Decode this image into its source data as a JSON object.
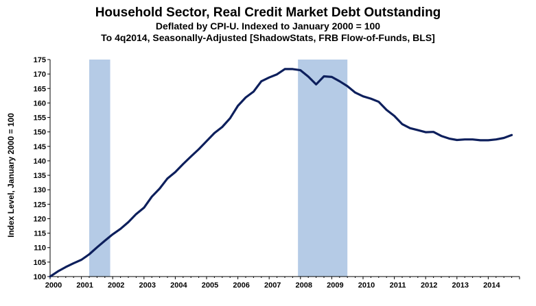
{
  "chart_data": {
    "type": "line",
    "title": "Household Sector, Real Credit Market Debt Outstanding",
    "subtitle_1": "Deflated by CPI-U. Indexed to January 2000 = 100",
    "subtitle_2": "To 4q2014, Seasonally-Adjusted [ShadowStats, FRB Flow-of-Funds, BLS]",
    "ylabel": "Index Level, January 2000 = 100",
    "xlabel": "",
    "ylim": [
      100,
      175
    ],
    "yticks": [
      100,
      105,
      110,
      115,
      120,
      125,
      130,
      135,
      140,
      145,
      150,
      155,
      160,
      165,
      170,
      175
    ],
    "xlim": [
      2000.0,
      2015.0
    ],
    "xticks": [
      "2000",
      "2001",
      "2002",
      "2003",
      "2004",
      "2005",
      "2006",
      "2007",
      "2008",
      "2009",
      "2010",
      "2011",
      "2012",
      "2013",
      "2014"
    ],
    "grid": false,
    "recession_shading": [
      {
        "start": 2001.25,
        "end": 2001.92
      },
      {
        "start": 2007.92,
        "end": 2009.5
      }
    ],
    "colors": {
      "line": "#0d1f5c",
      "recession": "#b5cbe6",
      "axis": "#000000"
    },
    "series": [
      {
        "x": [
          2000.0,
          2000.25,
          2000.5,
          2000.75,
          2001.0,
          2001.25,
          2001.5,
          2001.75,
          2002.0,
          2002.25,
          2002.5,
          2002.75,
          2003.0,
          2003.25,
          2003.5,
          2003.75,
          2004.0,
          2004.25,
          2004.5,
          2004.75,
          2005.0,
          2005.25,
          2005.5,
          2005.75,
          2006.0,
          2006.25,
          2006.5,
          2006.75,
          2007.0,
          2007.25,
          2007.5,
          2007.75,
          2008.0,
          2008.25,
          2008.5,
          2008.75,
          2009.0,
          2009.25,
          2009.5,
          2009.75,
          2010.0,
          2010.25,
          2010.5,
          2010.75,
          2011.0,
          2011.25,
          2011.5,
          2011.75,
          2012.0,
          2012.25,
          2012.5,
          2012.75,
          2013.0,
          2013.25,
          2013.5,
          2013.75,
          2014.0,
          2014.25,
          2014.5,
          2014.75
        ],
        "values": [
          100.0,
          101.8,
          103.3,
          104.6,
          105.8,
          107.7,
          110.1,
          112.4,
          114.6,
          116.5,
          118.8,
          121.6,
          123.8,
          127.6,
          130.4,
          133.9,
          136.1,
          138.9,
          141.5,
          144.0,
          146.8,
          149.6,
          151.7,
          154.7,
          159.0,
          161.9,
          163.9,
          167.5,
          168.8,
          169.9,
          171.7,
          171.7,
          171.3,
          169.1,
          166.4,
          169.2,
          169.0,
          167.5,
          165.8,
          163.6,
          162.3,
          161.5,
          160.4,
          157.6,
          155.5,
          152.7,
          151.3,
          150.6,
          149.9,
          150.0,
          148.6,
          147.7,
          147.2,
          147.4,
          147.4,
          147.1,
          147.1,
          147.4,
          147.9,
          148.9
        ]
      }
    ]
  }
}
